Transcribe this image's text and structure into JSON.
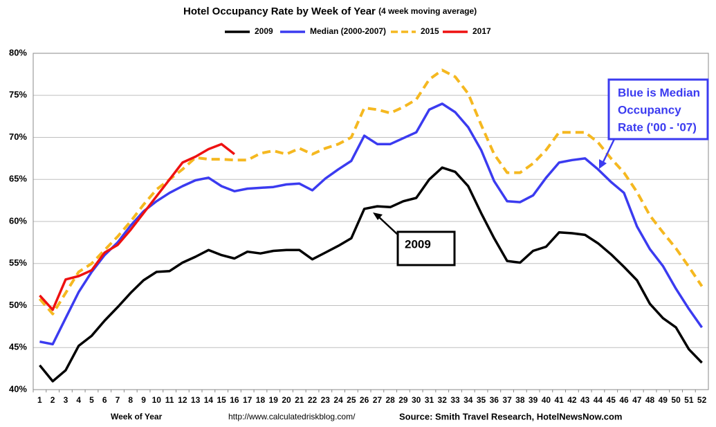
{
  "chart_data": {
    "type": "line",
    "title": "Hotel Occupancy Rate by  Week of Year",
    "subtitle": "(4 week moving average)",
    "x_label": "Week of Year",
    "url": "http://www.calculatedriskblog.com/",
    "source": "Source: Smith Travel Research, HotelNewsNow.com",
    "categories": [
      1,
      2,
      3,
      4,
      5,
      6,
      7,
      8,
      9,
      10,
      11,
      12,
      13,
      14,
      15,
      16,
      17,
      18,
      19,
      20,
      21,
      22,
      23,
      24,
      25,
      26,
      27,
      28,
      29,
      30,
      31,
      32,
      33,
      34,
      35,
      36,
      37,
      38,
      39,
      40,
      41,
      42,
      43,
      44,
      45,
      46,
      47,
      48,
      49,
      50,
      51,
      52
    ],
    "ylim": [
      40,
      80
    ],
    "yticks": [
      {
        "value": 40,
        "label": "40%"
      },
      {
        "value": 45,
        "label": "45%"
      },
      {
        "value": 50,
        "label": "50%"
      },
      {
        "value": 55,
        "label": "55%"
      },
      {
        "value": 60,
        "label": "60%"
      },
      {
        "value": 65,
        "label": "65%"
      },
      {
        "value": 70,
        "label": "70%"
      },
      {
        "value": 75,
        "label": "75%"
      },
      {
        "value": 80,
        "label": "80%"
      }
    ],
    "grid": true,
    "legend": "top",
    "series": [
      {
        "name": "2009",
        "color": "#000000",
        "style": "solid",
        "values": [
          42.9,
          41.0,
          42.3,
          45.2,
          46.4,
          48.2,
          49.8,
          51.5,
          53.0,
          54.0,
          54.1,
          55.1,
          55.8,
          56.6,
          56.0,
          55.6,
          56.4,
          56.2,
          56.5,
          56.6,
          56.6,
          55.5,
          56.3,
          57.1,
          58.0,
          61.5,
          61.8,
          61.7,
          62.4,
          62.8,
          65.0,
          66.4,
          65.9,
          64.2,
          61.0,
          58.0,
          55.3,
          55.1,
          56.5,
          57.0,
          58.7,
          58.6,
          58.4,
          57.4,
          56.1,
          54.6,
          53.0,
          50.2,
          48.5,
          47.4,
          44.8,
          43.2
        ]
      },
      {
        "name": "Median (2000-2007)",
        "color": "#3b3bf0",
        "style": "solid",
        "values": [
          45.7,
          45.4,
          48.5,
          51.6,
          54.0,
          56.0,
          57.5,
          59.5,
          61.2,
          62.4,
          63.4,
          64.2,
          64.9,
          65.2,
          64.2,
          63.6,
          63.9,
          64.0,
          64.1,
          64.4,
          64.5,
          63.7,
          65.1,
          66.2,
          67.2,
          70.2,
          69.2,
          69.2,
          69.9,
          70.6,
          73.3,
          74.0,
          73.0,
          71.2,
          68.5,
          64.8,
          62.4,
          62.3,
          63.1,
          65.2,
          67.0,
          67.3,
          67.5,
          66.2,
          64.7,
          63.4,
          59.4,
          56.7,
          54.7,
          52.0,
          49.6,
          47.4
        ]
      },
      {
        "name": "2015",
        "color": "#f5b820",
        "style": "dashed",
        "values": [
          50.8,
          49.0,
          51.5,
          54.0,
          55.0,
          56.6,
          58.2,
          60.0,
          62.0,
          63.8,
          65.0,
          66.2,
          67.6,
          67.4,
          67.4,
          67.3,
          67.3,
          68.1,
          68.4,
          68.0,
          68.7,
          68.0,
          68.7,
          69.2,
          70.0,
          73.5,
          73.3,
          72.9,
          73.6,
          74.5,
          76.9,
          78.0,
          77.2,
          75.2,
          71.5,
          68.0,
          65.8,
          65.8,
          66.9,
          68.5,
          70.6,
          70.6,
          70.6,
          69.4,
          67.5,
          65.8,
          63.5,
          60.7,
          58.7,
          56.8,
          54.6,
          52.3
        ]
      },
      {
        "name": "2017",
        "color": "#ee1111",
        "style": "solid",
        "values": [
          51.2,
          49.5,
          53.1,
          53.5,
          54.2,
          56.3,
          57.2,
          59.0,
          61.0,
          63.0,
          65.0,
          67.0,
          67.7,
          68.6,
          69.2,
          68.0,
          null,
          null,
          null,
          null,
          null,
          null,
          null,
          null,
          null,
          null,
          null,
          null,
          null,
          null,
          null,
          null,
          null,
          null,
          null,
          null,
          null,
          null,
          null,
          null,
          null,
          null,
          null,
          null,
          null,
          null,
          null,
          null,
          null,
          null,
          null,
          null
        ]
      }
    ],
    "annotations": [
      {
        "lines": [
          "Blue is Median",
          "Occupancy",
          "Rate ('00 - '07)"
        ],
        "color": "#3b3bf0"
      },
      {
        "lines": [
          "2009"
        ],
        "color": "#000000"
      }
    ]
  }
}
